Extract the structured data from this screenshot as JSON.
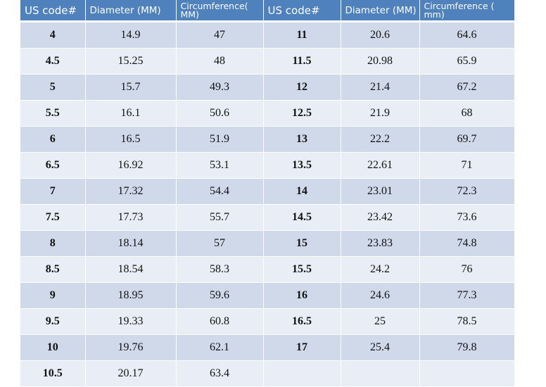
{
  "headers": [
    "US code#",
    "Diameter (MM)",
    "Circumference( MM)",
    "US code#",
    "Diameter (MM)",
    "Circumference ( mm)"
  ],
  "rows": [
    [
      "4",
      "14.9",
      "47",
      "11",
      "20.6",
      "64.6"
    ],
    [
      "4.5",
      "15.25",
      "48",
      "11.5",
      "20.98",
      "65.9"
    ],
    [
      "5",
      "15.7",
      "49.3",
      "12",
      "21.4",
      "67.2"
    ],
    [
      "5.5",
      "16.1",
      "50.6",
      "12.5",
      "21.9",
      "68"
    ],
    [
      "6",
      "16.5",
      "51.9",
      "13",
      "22.2",
      "69.7"
    ],
    [
      "6.5",
      "16.92",
      "53.1",
      "13.5",
      "22.61",
      "71"
    ],
    [
      "7",
      "17.32",
      "54.4",
      "14",
      "23.01",
      "72.3"
    ],
    [
      "7.5",
      "17.73",
      "55.7",
      "14.5",
      "23.42",
      "73.6"
    ],
    [
      "8",
      "18.14",
      "57",
      "15",
      "23.83",
      "74.8"
    ],
    [
      "8.5",
      "18.54",
      "58.3",
      "15.5",
      "24.2",
      "76"
    ],
    [
      "9",
      "18.95",
      "59.6",
      "16",
      "24.6",
      "77.3"
    ],
    [
      "9.5",
      "19.33",
      "60.8",
      "16.5",
      "25",
      "78.5"
    ],
    [
      "10",
      "19.76",
      "62.1",
      "17",
      "25.4",
      "79.8"
    ],
    [
      "10.5",
      "20.17",
      "63.4",
      "",
      "",
      ""
    ]
  ],
  "colors": {
    "header_bg": "#4f81bd",
    "row_dark": "#d0d9ea",
    "row_light": "#e9edf5"
  }
}
